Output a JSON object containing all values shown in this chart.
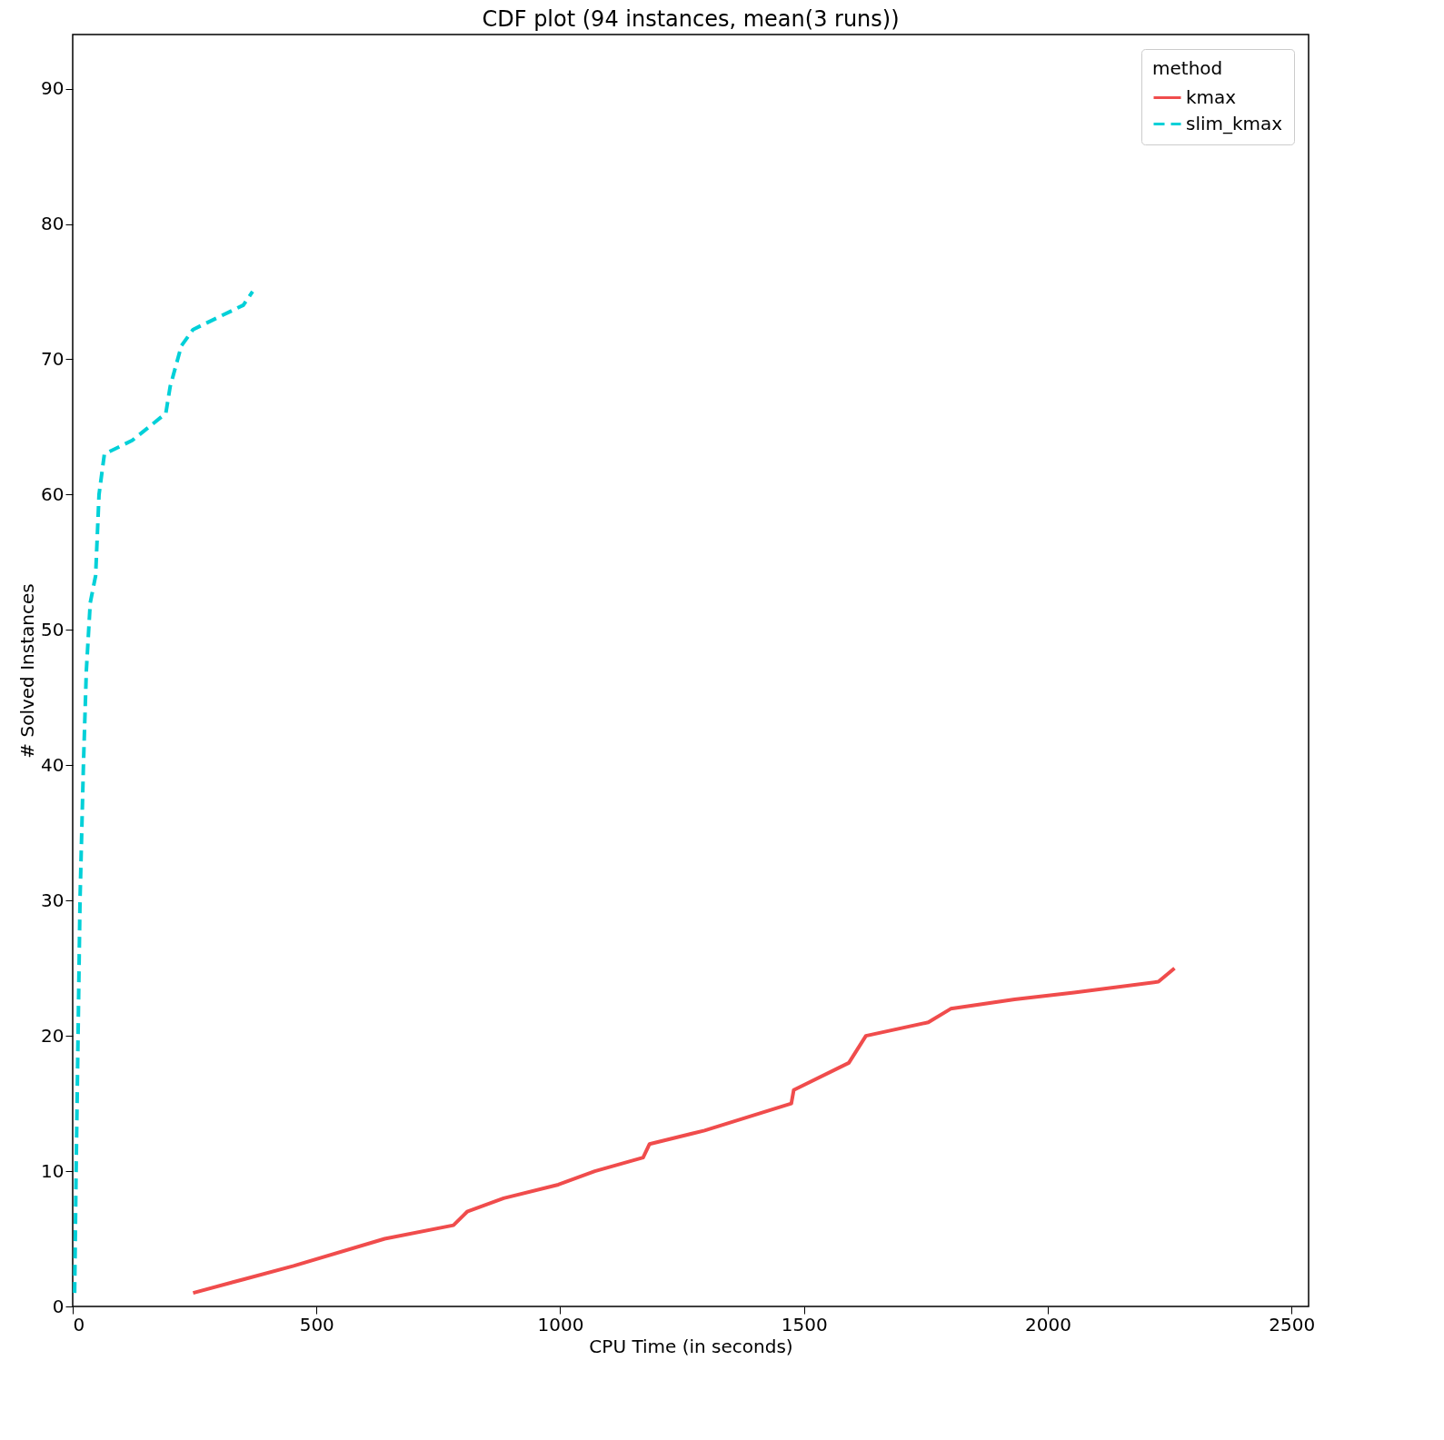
{
  "chart_data": {
    "type": "line",
    "title": "CDF plot (94 instances, mean(3 runs))",
    "xlabel": "CPU Time (in seconds)",
    "ylabel": "# Solved Instances",
    "legend_title": "method",
    "legend": "top right",
    "grid": false,
    "xlim": [
      0,
      2535
    ],
    "ylim": [
      0,
      94
    ],
    "xticks": [
      0,
      500,
      1000,
      1500,
      2000,
      2500
    ],
    "yticks": [
      0,
      10,
      20,
      30,
      40,
      50,
      60,
      70,
      80,
      90
    ],
    "series": [
      {
        "name": "kmax",
        "color": "#f04c4c",
        "line_style": "solid",
        "x": [
          247,
          350,
          453,
          640,
          781,
          809,
          884,
          996,
          1071,
          1170,
          1183,
          1296,
          1474,
          1479,
          1592,
          1627,
          1755,
          1801,
          1932,
          2054,
          2227,
          2260
        ],
        "values": [
          1,
          2,
          3,
          5,
          6,
          7,
          8,
          9,
          10,
          11,
          12,
          13,
          15,
          16,
          18,
          20,
          21,
          22,
          22.7,
          23.2,
          24,
          25
        ]
      },
      {
        "name": "slim_kmax",
        "color": "#00d0d8",
        "line_style": "dashed",
        "x": [
          4,
          7,
          11,
          15,
          22,
          28,
          36,
          47,
          54,
          65,
          122,
          191,
          200,
          223,
          247,
          350,
          369
        ],
        "values": [
          1,
          10,
          20,
          30,
          40,
          47,
          52,
          54,
          60,
          63,
          64,
          66,
          68,
          71,
          72.2,
          74,
          75
        ]
      }
    ]
  }
}
